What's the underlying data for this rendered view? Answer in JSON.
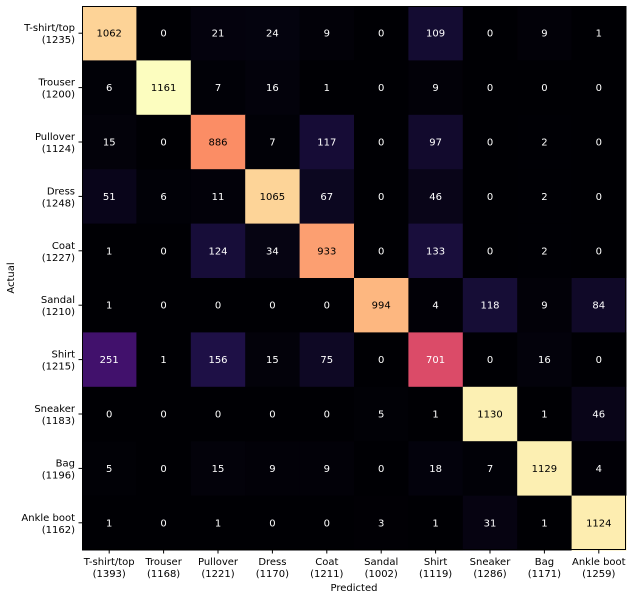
{
  "chart_data": {
    "type": "heatmap",
    "title": "",
    "xlabel": "Predicted",
    "ylabel": "Actual",
    "x_categories": [
      "T-shirt/top",
      "Trouser",
      "Pullover",
      "Dress",
      "Coat",
      "Sandal",
      "Shirt",
      "Sneaker",
      "Bag",
      "Ankle boot"
    ],
    "x_totals": [
      "(1393)",
      "(1168)",
      "(1221)",
      "(1170)",
      "(1211)",
      "(1002)",
      "(1119)",
      "(1286)",
      "(1171)",
      "(1259)"
    ],
    "y_categories": [
      "T-shirt/top",
      "Trouser",
      "Pullover",
      "Dress",
      "Coat",
      "Sandal",
      "Shirt",
      "Sneaker",
      "Bag",
      "Ankle boot"
    ],
    "y_totals": [
      "(1235)",
      "(1200)",
      "(1124)",
      "(1248)",
      "(1227)",
      "(1210)",
      "(1215)",
      "(1183)",
      "(1196)",
      "(1162)"
    ],
    "values": [
      [
        1062,
        0,
        21,
        24,
        9,
        0,
        109,
        0,
        9,
        1
      ],
      [
        6,
        1161,
        7,
        16,
        1,
        0,
        9,
        0,
        0,
        0
      ],
      [
        15,
        0,
        886,
        7,
        117,
        0,
        97,
        0,
        2,
        0
      ],
      [
        51,
        6,
        11,
        1065,
        67,
        0,
        46,
        0,
        2,
        0
      ],
      [
        1,
        0,
        124,
        34,
        933,
        0,
        133,
        0,
        2,
        0
      ],
      [
        1,
        0,
        0,
        0,
        0,
        994,
        4,
        118,
        9,
        84
      ],
      [
        251,
        1,
        156,
        15,
        75,
        0,
        701,
        0,
        16,
        0
      ],
      [
        0,
        0,
        0,
        0,
        0,
        5,
        1,
        1130,
        1,
        46
      ],
      [
        5,
        0,
        15,
        9,
        9,
        0,
        18,
        7,
        1129,
        4
      ],
      [
        1,
        0,
        1,
        0,
        0,
        3,
        1,
        31,
        1,
        1124
      ]
    ],
    "colormap": "magma",
    "color_range": [
      0,
      1161
    ],
    "grid": false,
    "legend": "none"
  }
}
